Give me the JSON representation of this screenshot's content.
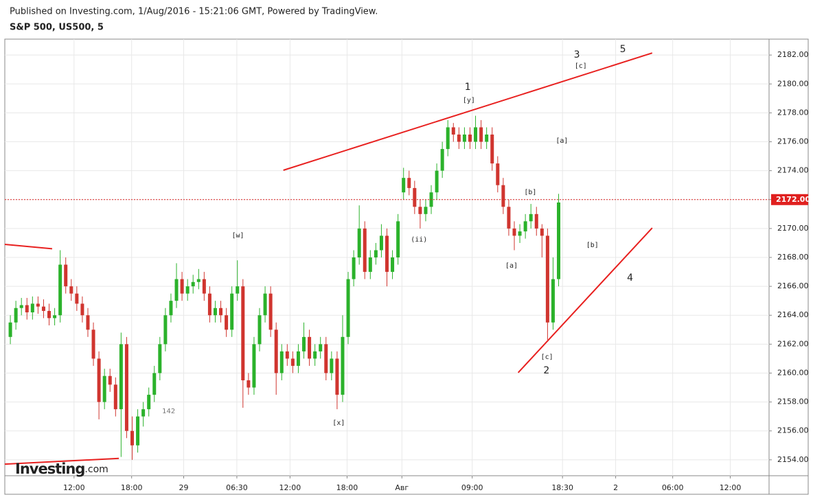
{
  "header": {
    "published": "Published on Investing.com, 1/Aug/2016 - 15:21:06 GMT, Powered by TradingView.",
    "symbol": "S&P 500, US500, 5"
  },
  "logo": {
    "brand": "Investing",
    "suffix": ".com"
  },
  "chart_data": {
    "type": "candlestick",
    "up_color": "#2bb22b",
    "down_color": "#d0352f",
    "xlim": [
      -1,
      137
    ],
    "ylim": [
      2152.9,
      2183.1
    ],
    "grid": true,
    "xticks": [
      {
        "value": 11.5,
        "label": "12:00"
      },
      {
        "value": 21.9,
        "label": "18:00"
      },
      {
        "value": 31.3,
        "label": "29"
      },
      {
        "value": 40.9,
        "label": "06:30"
      },
      {
        "value": 50.5,
        "label": "12:00"
      },
      {
        "value": 60.8,
        "label": "18:00"
      },
      {
        "value": 70.7,
        "label": "Авг"
      },
      {
        "value": 83.4,
        "label": "09:00"
      },
      {
        "value": 99.7,
        "label": "18:30"
      },
      {
        "value": 109.3,
        "label": "2"
      },
      {
        "value": 119.6,
        "label": "06:00"
      },
      {
        "value": 130,
        "label": "12:00"
      }
    ],
    "yticks": [
      {
        "value": 2154,
        "label": "2154.00"
      },
      {
        "value": 2156,
        "label": "2156.00"
      },
      {
        "value": 2158,
        "label": "2158.00"
      },
      {
        "value": 2160,
        "label": "2160.00"
      },
      {
        "value": 2162,
        "label": "2162.00"
      },
      {
        "value": 2164,
        "label": "2164.00"
      },
      {
        "value": 2166,
        "label": "2166.00"
      },
      {
        "value": 2168,
        "label": "2168.00"
      },
      {
        "value": 2170,
        "label": "2170.00"
      },
      {
        "value": 2172,
        "label": "2172.00"
      },
      {
        "value": 2174,
        "label": "2174.00"
      },
      {
        "value": 2176,
        "label": "2176.00"
      },
      {
        "value": 2178,
        "label": "2178.00"
      },
      {
        "value": 2180,
        "label": "2180.00"
      },
      {
        "value": 2182,
        "label": "2182.00"
      }
    ],
    "last_price": {
      "value": 2172,
      "label": "2172.00",
      "color": "#e0201f"
    },
    "open": [
      2162.5,
      2163.5,
      2164.5,
      2164.7,
      2164.2,
      2164.8,
      2164.6,
      2164.3,
      2163.8,
      2164.0,
      2167.5,
      2166.0,
      2165.5,
      2164.8,
      2164.0,
      2163.0,
      2161.0,
      2158.0,
      2159.8,
      2159.2,
      2157.5,
      2162.0,
      2156.0,
      2155.0,
      2157.0,
      2157.5,
      2158.5,
      2160.0,
      2162.0,
      2164.0,
      2165.0,
      2166.5,
      2165.5,
      2166.0,
      2166.3,
      2166.5,
      2165.5,
      2164.0,
      2164.5,
      2164.0,
      2163.0,
      2165.5,
      2166.0,
      2159.5,
      2159.0,
      2162.0,
      2164.0,
      2165.5,
      2163.0,
      2160.0,
      2161.5,
      2161.0,
      2160.5,
      2161.5,
      2162.5,
      2161.0,
      2161.5,
      2162.0,
      2160.0,
      2161.0,
      2158.5,
      2162.5,
      2166.5,
      2168.0,
      2170.0,
      2167.0,
      2168.0,
      2168.5,
      2169.5,
      2167.0,
      2168.0,
      2172.5,
      2173.5,
      2172.8,
      2171.5,
      2171.0,
      2171.5,
      2172.5,
      2174.0,
      2175.5,
      2177.0,
      2176.5,
      2176.0,
      2176.5,
      2176.0,
      2177.0,
      2176.0,
      2176.5,
      2174.5,
      2173.0,
      2171.5,
      2170.0,
      2169.5,
      2169.8,
      2170.5,
      2171.0,
      2170.0,
      2169.5,
      2163.5,
      2166.5
    ],
    "high": [
      2164.0,
      2165.0,
      2165.2,
      2165.2,
      2165.3,
      2165.3,
      2165.1,
      2164.8,
      2164.5,
      2168.5,
      2168.0,
      2166.5,
      2166.0,
      2165.3,
      2164.5,
      2163.5,
      2161.5,
      2160.3,
      2160.3,
      2159.7,
      2162.8,
      2162.5,
      2157.0,
      2157.5,
      2158.0,
      2159.0,
      2160.5,
      2162.5,
      2164.5,
      2165.5,
      2167.6,
      2167.0,
      2166.5,
      2166.8,
      2167.2,
      2167.0,
      2166.0,
      2165.0,
      2165.0,
      2164.5,
      2166.0,
      2167.8,
      2166.5,
      2160.0,
      2162.5,
      2164.5,
      2166.0,
      2166.0,
      2163.5,
      2162.0,
      2162.0,
      2161.5,
      2162.0,
      2163.5,
      2163.0,
      2162.0,
      2162.5,
      2162.5,
      2161.5,
      2161.5,
      2164.0,
      2167.0,
      2168.5,
      2171.6,
      2170.5,
      2168.5,
      2169.0,
      2170.3,
      2170.0,
      2168.5,
      2171.0,
      2174.2,
      2174.0,
      2173.3,
      2172.0,
      2172.0,
      2173.0,
      2174.5,
      2176.0,
      2177.5,
      2177.3,
      2177.0,
      2177.0,
      2177.0,
      2177.8,
      2177.5,
      2177.0,
      2177.0,
      2175.0,
      2173.5,
      2172.0,
      2170.5,
      2170.3,
      2171.0,
      2171.7,
      2171.5,
      2170.3,
      2170.0,
      2168.0,
      2172.4
    ],
    "low": [
      2162.0,
      2163.0,
      2164.0,
      2163.7,
      2163.7,
      2164.1,
      2163.8,
      2163.3,
      2163.3,
      2163.5,
      2165.5,
      2165.0,
      2164.3,
      2163.5,
      2162.5,
      2160.5,
      2156.8,
      2157.5,
      2158.7,
      2157.0,
      2154.2,
      2155.5,
      2154.0,
      2154.5,
      2156.3,
      2157.0,
      2158.0,
      2159.5,
      2161.5,
      2163.5,
      2164.5,
      2165.0,
      2165.0,
      2165.5,
      2165.8,
      2165.0,
      2163.5,
      2163.5,
      2163.5,
      2162.5,
      2162.5,
      2165.0,
      2157.6,
      2158.5,
      2158.5,
      2161.5,
      2163.5,
      2162.5,
      2158.5,
      2159.5,
      2160.5,
      2160.0,
      2160.0,
      2161.0,
      2160.5,
      2160.5,
      2161.0,
      2159.5,
      2159.5,
      2157.5,
      2158.0,
      2162.0,
      2166.0,
      2167.5,
      2166.5,
      2166.5,
      2167.5,
      2168.0,
      2166.0,
      2166.5,
      2167.5,
      2172.0,
      2172.3,
      2171.0,
      2170.0,
      2170.5,
      2171.0,
      2172.0,
      2173.5,
      2175.0,
      2176.0,
      2175.5,
      2175.5,
      2175.5,
      2175.5,
      2175.5,
      2175.5,
      2174.0,
      2172.5,
      2171.0,
      2169.5,
      2168.5,
      2169.0,
      2169.3,
      2170.0,
      2169.5,
      2168.0,
      2162.3,
      2163.0,
      2166.0
    ],
    "close": [
      2163.5,
      2164.5,
      2164.7,
      2164.2,
      2164.8,
      2164.6,
      2164.3,
      2163.8,
      2164.0,
      2167.5,
      2166.0,
      2165.5,
      2164.8,
      2164.0,
      2163.0,
      2161.0,
      2158.0,
      2159.8,
      2159.2,
      2157.5,
      2162.0,
      2156.0,
      2155.0,
      2157.0,
      2157.5,
      2158.5,
      2160.0,
      2162.0,
      2164.0,
      2165.0,
      2166.5,
      2165.5,
      2166.0,
      2166.3,
      2166.5,
      2165.5,
      2164.0,
      2164.5,
      2164.0,
      2163.0,
      2165.5,
      2166.0,
      2159.5,
      2159.0,
      2162.0,
      2164.0,
      2165.5,
      2163.0,
      2160.0,
      2161.5,
      2161.0,
      2160.5,
      2161.5,
      2162.5,
      2161.0,
      2161.5,
      2162.0,
      2160.0,
      2161.0,
      2158.5,
      2162.5,
      2166.5,
      2168.0,
      2170.0,
      2167.0,
      2168.0,
      2168.5,
      2169.5,
      2167.0,
      2168.0,
      2170.5,
      2173.5,
      2172.8,
      2171.5,
      2171.0,
      2171.5,
      2172.5,
      2174.0,
      2175.5,
      2177.0,
      2176.5,
      2176.0,
      2176.5,
      2176.0,
      2177.0,
      2176.0,
      2176.5,
      2174.5,
      2173.0,
      2171.5,
      2170.0,
      2169.5,
      2169.8,
      2170.5,
      2171.0,
      2170.0,
      2169.5,
      2163.5,
      2166.5,
      2171.8
    ],
    "trendlines": [
      {
        "color": "#e8201f",
        "x": [
          49.3,
          115.9
        ],
        "y": [
          2174.03,
          2182.14
        ]
      },
      {
        "color": "#e8201f",
        "x": [
          91.7,
          115.9
        ],
        "y": [
          2160.03,
          2170.04
        ]
      },
      {
        "color": "#e8201f",
        "x": [
          -1,
          7.55
        ],
        "y": [
          2168.9,
          2168.6
        ]
      },
      {
        "color": "#e8201f",
        "x": [
          -1,
          19.6
        ],
        "y": [
          2153.7,
          2154.1
        ]
      }
    ],
    "annotations": [
      {
        "text": "1",
        "x": 82.6,
        "y": 2179.77
      },
      {
        "text": "[y]",
        "x": 82.8,
        "y": 2178.87
      },
      {
        "text": "3",
        "x": 102.3,
        "y": 2182.0
      },
      {
        "text": "[c]",
        "x": 103.0,
        "y": 2181.24
      },
      {
        "text": "5",
        "x": 110.6,
        "y": 2182.38
      },
      {
        "text": "[a]",
        "x": 99.6,
        "y": 2176.07
      },
      {
        "text": "[b]",
        "x": 93.9,
        "y": 2172.5
      },
      {
        "text": "[b]",
        "x": 105.1,
        "y": 2168.85
      },
      {
        "text": "4",
        "x": 111.9,
        "y": 2166.58
      },
      {
        "text": "[a]",
        "x": 90.5,
        "y": 2167.43
      },
      {
        "text": "[c]",
        "x": 96.9,
        "y": 2161.12
      },
      {
        "text": "2",
        "x": 96.8,
        "y": 2160.17
      },
      {
        "text": "(ii)",
        "x": 73.8,
        "y": 2169.23
      },
      {
        "text": "[w]",
        "x": 41.1,
        "y": 2169.52
      },
      {
        "text": "[x]",
        "x": 59.3,
        "y": 2156.56
      },
      {
        "text": "142",
        "x": 28.6,
        "y": 2157.37
      }
    ]
  }
}
